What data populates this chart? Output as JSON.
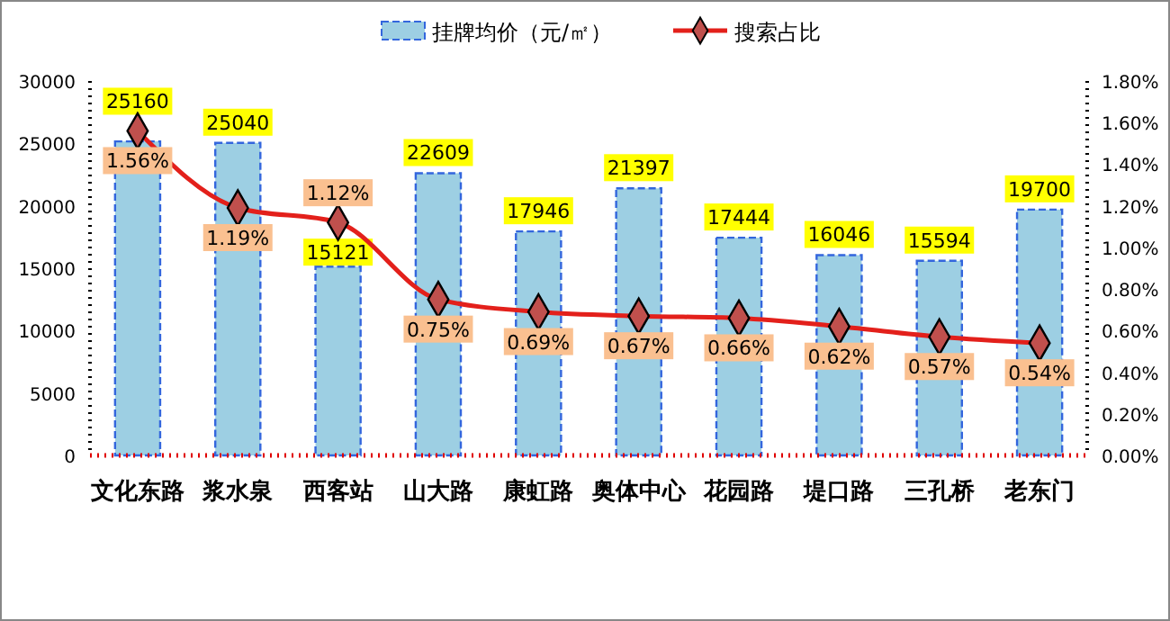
{
  "chart_data": {
    "type": "bar",
    "categories": [
      "文化东路",
      "浆水泉",
      "西客站",
      "山大路",
      "康虹路",
      "奥体中心",
      "花园路",
      "堤口路",
      "三孔桥",
      "老东门"
    ],
    "series": [
      {
        "name": "挂牌均价（元/㎡）",
        "color": "#9dcfe3",
        "values": [
          25160,
          25040,
          15121,
          22609,
          17946,
          21397,
          17444,
          16046,
          15594,
          19700
        ]
      },
      {
        "name": "搜索占比",
        "type": "line",
        "axis": "y2",
        "color": "#e3201b",
        "marker": "diamond",
        "values": [
          1.56,
          1.19,
          1.12,
          0.75,
          0.69,
          0.67,
          0.66,
          0.62,
          0.57,
          0.54
        ],
        "value_labels": [
          "1.56%",
          "1.19%",
          "1.12%",
          "0.75%",
          "0.69%",
          "0.67%",
          "0.66%",
          "0.62%",
          "0.57%",
          "0.54%"
        ]
      }
    ],
    "data_labels": true,
    "legend": "top",
    "grid": false,
    "ylim": [
      0,
      30000
    ],
    "yticks": [
      0,
      5000,
      10000,
      15000,
      20000,
      25000,
      30000
    ],
    "y2lim": [
      0,
      1.8
    ],
    "y2ticks": [
      {
        "value": 0,
        "label": "0.00%"
      },
      {
        "value": 0.2,
        "label": "0.20%"
      },
      {
        "value": 0.4,
        "label": "0.40%"
      },
      {
        "value": 0.6,
        "label": "0.60%"
      },
      {
        "value": 0.8,
        "label": "0.80%"
      },
      {
        "value": 1.0,
        "label": "1.00%"
      },
      {
        "value": 1.2,
        "label": "1.20%"
      },
      {
        "value": 1.4,
        "label": "1.40%"
      },
      {
        "value": 1.6,
        "label": "1.60%"
      },
      {
        "value": 1.8,
        "label": "1.80%"
      }
    ]
  }
}
